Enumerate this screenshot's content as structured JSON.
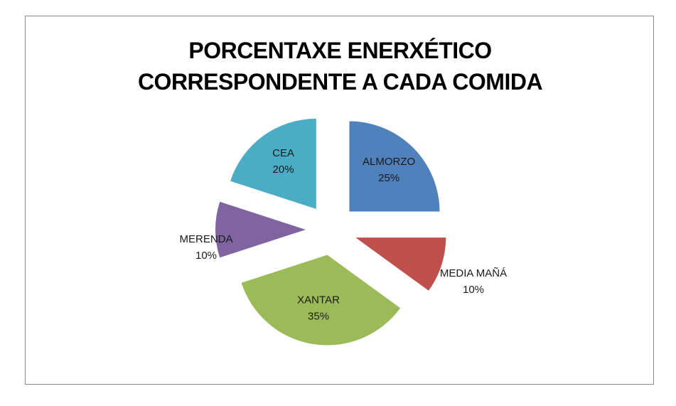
{
  "chart_data": {
    "type": "pie",
    "title_lines": [
      "PORCENTAXE ENERXÉTICO",
      "CORRESPONDENTE A CADA COMIDA"
    ],
    "slices": [
      {
        "label": "ALMORZO",
        "value": 25,
        "pct_text": "25%",
        "color": "#4f81bd"
      },
      {
        "label": "MEDIA MAÑÁ",
        "value": 10,
        "pct_text": "10%",
        "color": "#c0504d"
      },
      {
        "label": "XANTAR",
        "value": 35,
        "pct_text": "35%",
        "color": "#9bbb59"
      },
      {
        "label": "MERENDA",
        "value": 10,
        "pct_text": "10%",
        "color": "#8064a2"
      },
      {
        "label": "CEA",
        "value": 20,
        "pct_text": "20%",
        "color": "#4bacc6"
      }
    ],
    "exploded": true,
    "legend": "none"
  }
}
